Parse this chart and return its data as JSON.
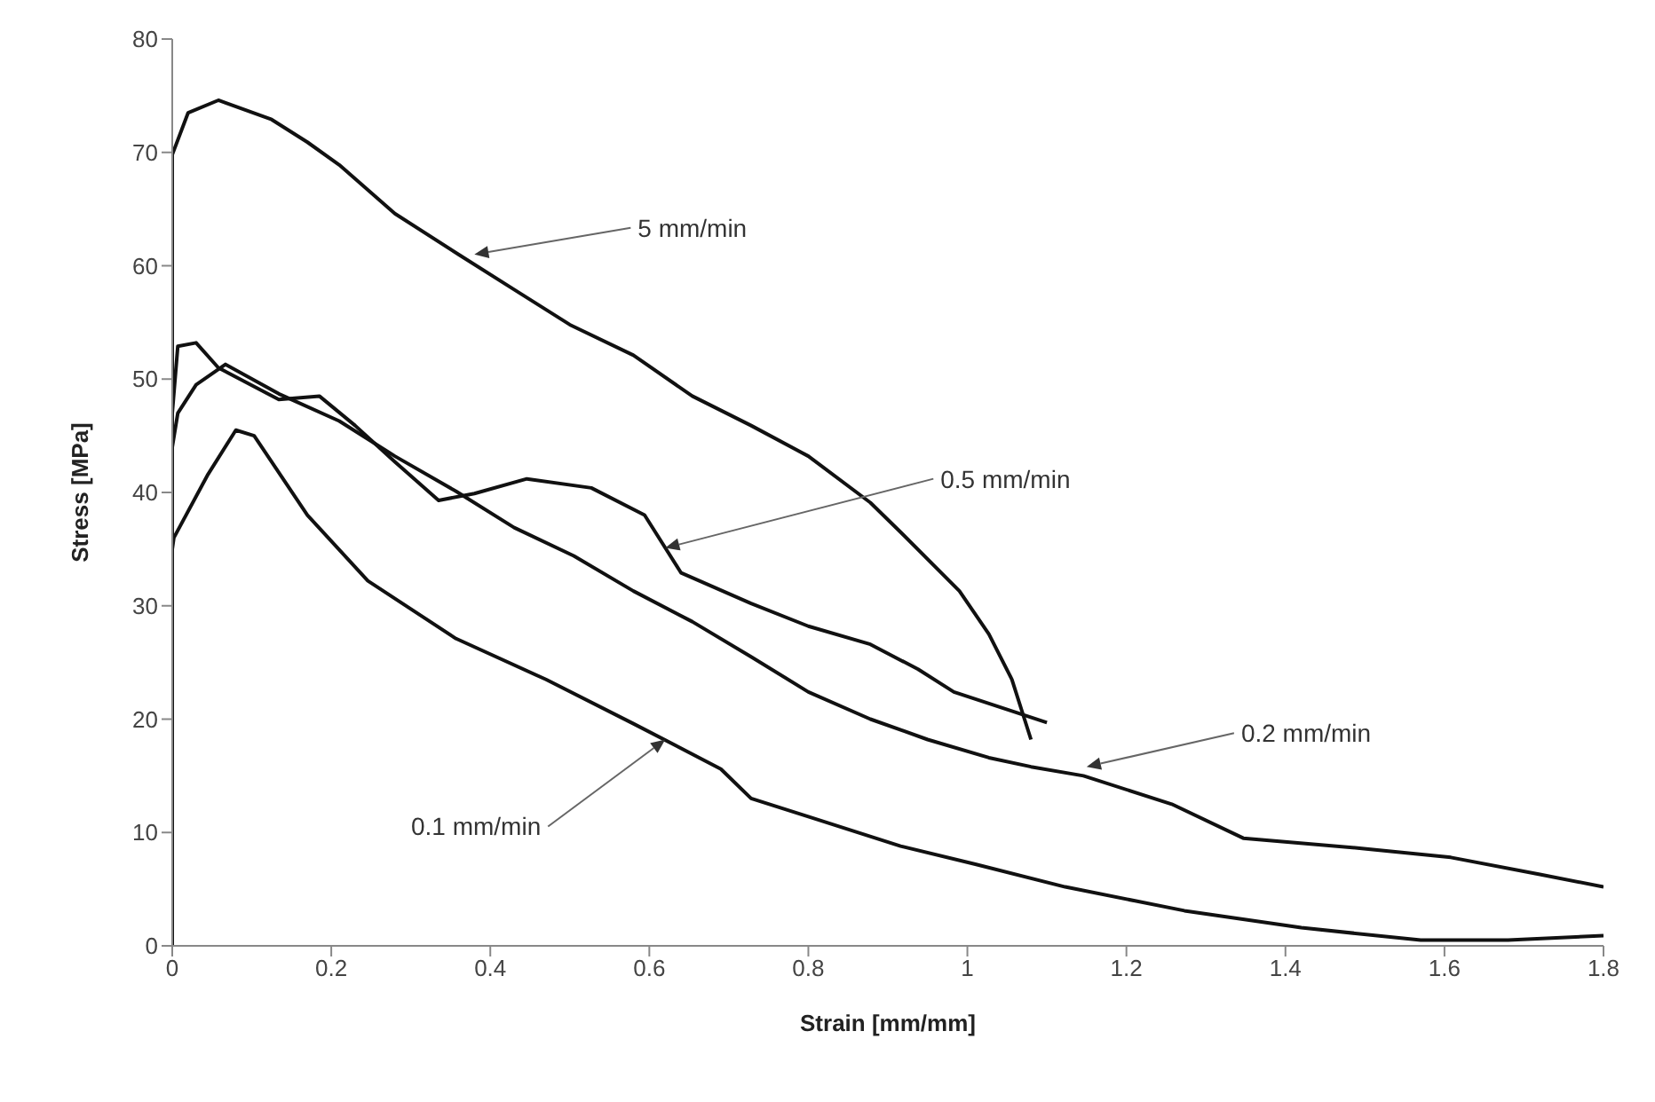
{
  "chart_data": {
    "type": "line",
    "xlabel": "Strain [mm/mm]",
    "ylabel": "Stress [MPa]",
    "xlim": [
      0,
      1.8
    ],
    "xticks": [
      0,
      0.2,
      0.4,
      0.6,
      0.8,
      1,
      1.2,
      1.4,
      1.6,
      1.8
    ],
    "ylim": [
      0,
      80
    ],
    "yticks": [
      0,
      10,
      20,
      30,
      40,
      50,
      60,
      70,
      80
    ],
    "grid": false,
    "legend": false,
    "marker": "none",
    "line_style": "solid",
    "series": [
      {
        "color": "#111111",
        "x": [
          0,
          0,
          0.02,
          0.058,
          0.125,
          0.17,
          0.21,
          0.28,
          0.36,
          0.43,
          0.5,
          0.58,
          0.654,
          0.728,
          0.8,
          0.878,
          0.916,
          0.99,
          1.027,
          1.056,
          1.08
        ],
        "values": [
          0,
          69.8,
          73.5,
          74.6,
          72.9,
          70.9,
          68.9,
          64.6,
          61.0,
          57.9,
          54.8,
          52.1,
          48.5,
          45.9,
          43.2,
          39.1,
          36.5,
          31.3,
          27.5,
          23.5,
          18.2
        ]
      },
      {
        "color": "#111111",
        "x": [
          0,
          0,
          0.007,
          0.03,
          0.058,
          0.134,
          0.185,
          0.23,
          0.28,
          0.335,
          0.38,
          0.446,
          0.527,
          0.594,
          0.64,
          0.728,
          0.8,
          0.878,
          0.938,
          0.983,
          1.1
        ],
        "values": [
          0,
          47,
          52.9,
          53.2,
          51.0,
          48.2,
          48.5,
          45.9,
          42.7,
          39.3,
          39.9,
          41.2,
          40.4,
          38.0,
          32.9,
          30.2,
          28.2,
          26.6,
          24.4,
          22.4,
          19.7
        ]
      },
      {
        "color": "#111111",
        "x": [
          0,
          0,
          0.007,
          0.03,
          0.067,
          0.134,
          0.21,
          0.28,
          0.357,
          0.43,
          0.505,
          0.58,
          0.654,
          0.728,
          0.8,
          0.878,
          0.95,
          1.027,
          1.08,
          1.146,
          1.257,
          1.347,
          1.496,
          1.608,
          1.72,
          1.8
        ],
        "values": [
          0,
          44,
          47,
          49.5,
          51.3,
          48.7,
          46.3,
          43.2,
          40.1,
          36.9,
          34.4,
          31.3,
          28.6,
          25.5,
          22.4,
          20.0,
          18.2,
          16.6,
          15.8,
          15.0,
          12.5,
          9.5,
          8.6,
          7.8,
          6.3,
          5.2
        ]
      },
      {
        "color": "#111111",
        "x": [
          0,
          0,
          0.002,
          0.045,
          0.08,
          0.103,
          0.17,
          0.246,
          0.357,
          0.47,
          0.58,
          0.69,
          0.728,
          0.8,
          0.916,
          1.01,
          1.123,
          1.273,
          1.42,
          1.57,
          1.68,
          1.8
        ],
        "values": [
          0,
          35,
          36,
          41.6,
          45.5,
          45.0,
          38.0,
          32.2,
          27.1,
          23.5,
          19.6,
          15.6,
          13.0,
          11.4,
          8.8,
          7.2,
          5.2,
          3.1,
          1.6,
          0.5,
          0.5,
          0.9
        ]
      }
    ],
    "annotations": [
      {
        "text": "5 mm/min",
        "x": 0.38,
        "y": 61
      },
      {
        "text": "0.5 mm/min",
        "x": 0.62,
        "y": 35.1
      },
      {
        "text": "0.2 mm/min",
        "x": 1.15,
        "y": 15.8
      },
      {
        "text": "0.1 mm/min",
        "x": 0.62,
        "y": 18.2
      }
    ]
  }
}
